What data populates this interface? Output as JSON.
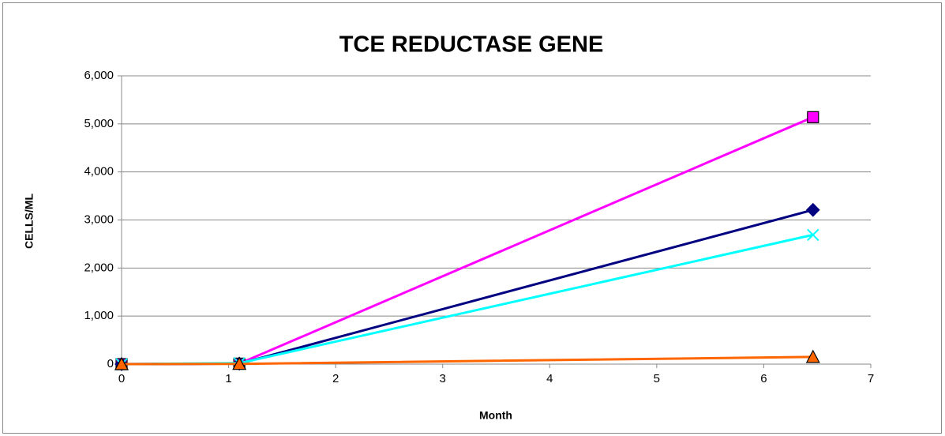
{
  "chart_data": {
    "type": "line",
    "title": "TCE REDUCTASE GENE",
    "x_label": "Month",
    "y_label": "CELLS/ML",
    "x": [
      0,
      1.1,
      6.46
    ],
    "series": [
      {
        "color": "#ff00ff",
        "marker": "square",
        "values": [
          0,
          10,
          5140
        ]
      },
      {
        "color": "#000080",
        "marker": "diamond",
        "values": [
          0,
          10,
          3210
        ]
      },
      {
        "color": "#00ffff",
        "marker": "x",
        "values": [
          0,
          20,
          2690
        ]
      },
      {
        "color": "#ff6600",
        "marker": "triangle",
        "values": [
          0,
          5,
          150
        ]
      }
    ],
    "xlim": [
      0,
      7
    ],
    "xticks": [
      0,
      1,
      2,
      3,
      4,
      5,
      6,
      7
    ],
    "ylim": [
      0,
      6000
    ],
    "yticks": [
      0,
      {
        "value": 1000,
        "label": "1,000"
      },
      {
        "value": 2000,
        "label": "2,000"
      },
      {
        "value": 3000,
        "label": "3,000"
      },
      {
        "value": 4000,
        "label": "4,000"
      },
      {
        "value": 5000,
        "label": "5,000"
      },
      {
        "value": 6000,
        "label": "6,000"
      }
    ],
    "grid": true
  }
}
